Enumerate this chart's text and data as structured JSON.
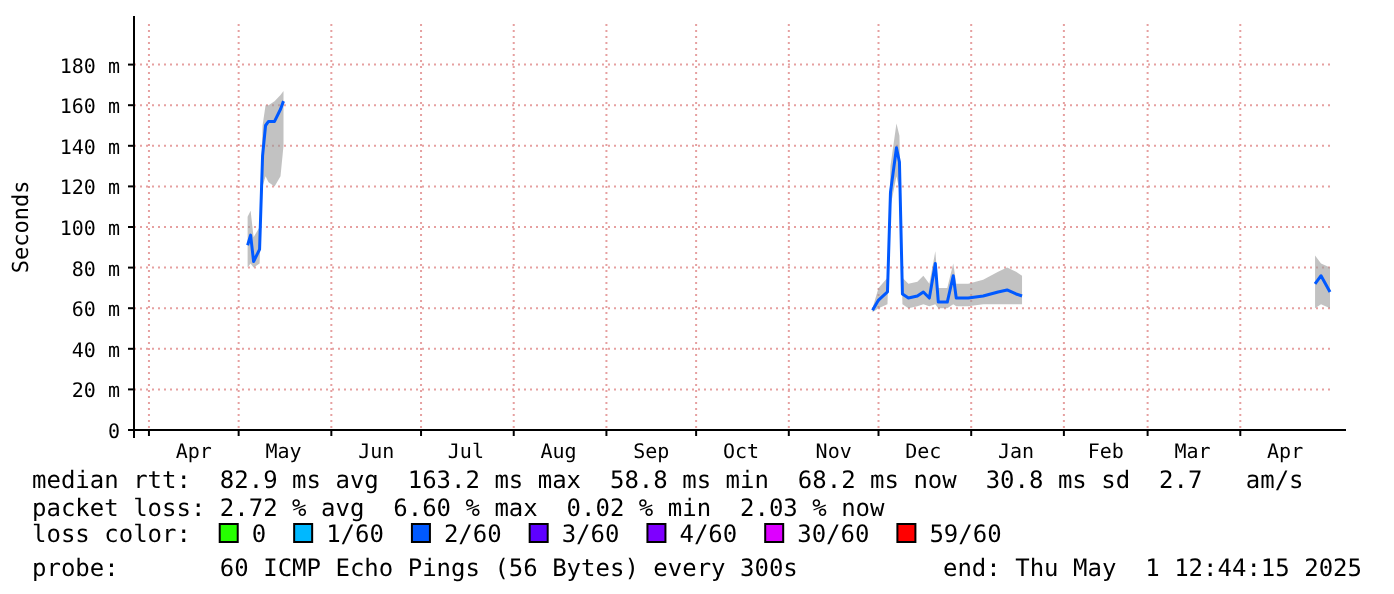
{
  "chart_data": {
    "type": "line",
    "ylabel": "Seconds",
    "xlim": [
      "2024-03-27",
      "2025-05-01"
    ],
    "xticks": [
      {
        "value": "2024-04-01",
        "label": null
      },
      {
        "value": "2024-04-16",
        "label": "Apr"
      },
      {
        "value": "2024-05-01",
        "label": null
      },
      {
        "value": "2024-05-16",
        "label": "May"
      },
      {
        "value": "2024-06-01",
        "label": null
      },
      {
        "value": "2024-06-16",
        "label": "Jun"
      },
      {
        "value": "2024-07-01",
        "label": null
      },
      {
        "value": "2024-07-16",
        "label": "Jul"
      },
      {
        "value": "2024-08-01",
        "label": null
      },
      {
        "value": "2024-08-16",
        "label": "Aug"
      },
      {
        "value": "2024-09-01",
        "label": null
      },
      {
        "value": "2024-09-16",
        "label": "Sep"
      },
      {
        "value": "2024-10-01",
        "label": null
      },
      {
        "value": "2024-10-16",
        "label": "Oct"
      },
      {
        "value": "2024-11-01",
        "label": null
      },
      {
        "value": "2024-11-16",
        "label": "Nov"
      },
      {
        "value": "2024-12-01",
        "label": null
      },
      {
        "value": "2024-12-16",
        "label": "Dec"
      },
      {
        "value": "2025-01-01",
        "label": null
      },
      {
        "value": "2025-01-16",
        "label": "Jan"
      },
      {
        "value": "2025-02-01",
        "label": null
      },
      {
        "value": "2025-02-15",
        "label": "Feb"
      },
      {
        "value": "2025-03-01",
        "label": null
      },
      {
        "value": "2025-03-16",
        "label": "Mar"
      },
      {
        "value": "2025-04-01",
        "label": null
      },
      {
        "value": "2025-04-16",
        "label": "Apr"
      }
    ],
    "ylim": [
      0,
      200
    ],
    "yticks": [
      0,
      {
        "value": 20,
        "label": "20 m"
      },
      {
        "value": 40,
        "label": "40 m"
      },
      {
        "value": 60,
        "label": "60 m"
      },
      {
        "value": 80,
        "label": "80 m"
      },
      {
        "value": 100,
        "label": "100 m"
      },
      {
        "value": 120,
        "label": "120 m"
      },
      {
        "value": 140,
        "label": "140 m"
      },
      {
        "value": 160,
        "label": "160 m"
      },
      {
        "value": 180,
        "label": "180 m"
      }
    ],
    "grid": true,
    "legend": "bottom",
    "legend_title": "loss color:",
    "series": [
      {
        "name": "0",
        "color": "#26ff00"
      },
      {
        "name": "1/60",
        "color": "#00b8ff"
      },
      {
        "name": "2/60",
        "color": "#0059ff",
        "x": [
          "2024-05-04",
          "2024-05-05",
          "2024-05-06",
          "2024-05-08",
          "2024-05-09",
          "2024-05-10",
          "2024-05-11",
          "2024-05-13",
          "2024-05-15",
          "2024-05-16",
          "2024-08-01",
          "2024-11-29",
          "2024-12-01",
          "2024-12-04",
          "2024-12-05",
          "2024-12-07",
          "2024-12-08",
          "2024-12-09",
          "2024-12-11",
          "2024-12-14",
          "2024-12-16",
          "2024-12-18",
          "2024-12-20",
          "2024-12-21",
          "2024-12-24",
          "2024-12-26",
          "2024-12-27",
          "2024-12-31",
          "2025-01-05",
          "2025-01-10",
          "2025-01-13",
          "2025-01-16",
          "2025-01-18",
          "2025-03-01",
          "2025-04-26",
          "2025-04-28",
          "2025-05-01"
        ],
        "values": [
          91,
          96,
          83,
          89,
          135,
          150,
          152,
          152,
          158,
          162,
          null,
          59,
          64,
          68,
          117,
          139,
          132,
          67,
          65,
          66,
          68,
          65,
          82,
          63,
          63,
          76,
          65,
          65,
          66,
          68,
          69,
          67,
          66,
          null,
          72,
          76,
          68
        ],
        "lower": [
          80,
          82,
          80,
          82,
          120,
          125,
          122,
          120,
          125,
          140,
          null,
          58,
          60,
          62,
          110,
          125,
          118,
          62,
          60,
          61,
          62,
          61,
          62,
          60,
          60,
          62,
          61,
          61,
          62,
          62,
          62,
          62,
          62,
          null,
          60,
          62,
          60
        ],
        "upper": [
          105,
          108,
          95,
          100,
          150,
          160,
          160,
          162,
          165,
          167,
          null,
          60,
          70,
          75,
          130,
          151,
          145,
          75,
          72,
          73,
          76,
          72,
          88,
          70,
          70,
          82,
          72,
          72,
          74,
          78,
          80,
          78,
          76,
          null,
          86,
          82,
          80
        ]
      },
      {
        "name": "3/60",
        "color": "#5e00ff"
      },
      {
        "name": "4/60",
        "color": "#7e00ff"
      },
      {
        "name": "30/60",
        "color": "#dd00ff"
      },
      {
        "name": "59/60",
        "color": "#ff0000"
      }
    ],
    "annotations": [
      "median rtt:  82.9 ms avg  163.2 ms max  58.8 ms min  68.2 ms now  30.8 ms sd  2.7   am/s",
      "packet loss: 2.72 % avg  6.60 % max  0.02 % min  2.03 % now",
      "probe:       60 ICMP Echo Pings (56 Bytes) every 300s",
      "end: Thu May  1 12:44:15 2025"
    ]
  }
}
